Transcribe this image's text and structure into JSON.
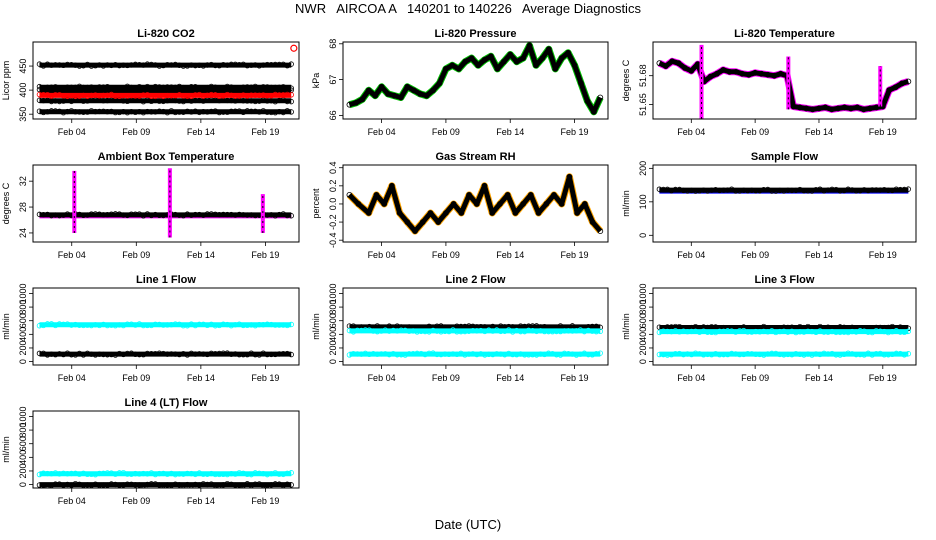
{
  "figure": {
    "title": "NWR   AIRCOA A   140201 to 140226   Average Diagnostics",
    "xlabel": "Date (UTC)"
  },
  "colors": {
    "black": "#000000",
    "red": "#ff0000",
    "green": "#00c000",
    "magenta": "#ff00ff",
    "orange": "#ffa500",
    "blue": "#0000ff",
    "cyan": "#00ffff"
  },
  "chart_data": [
    {
      "id": "co2",
      "type": "scatter",
      "title": "Li-820 CO2",
      "ylabel": "Licor ppm",
      "xlim": [
        1,
        21.6
      ],
      "ylim": [
        340,
        500
      ],
      "yticks": [
        350,
        400,
        450
      ],
      "xticks": [
        4,
        9,
        14,
        19
      ],
      "xticklabels": [
        "Feb 04",
        "Feb 09",
        "Feb 14",
        "Feb 19"
      ],
      "series": [
        {
          "name": "level-452",
          "color": "black",
          "style": "band",
          "x": [
            1.5,
            21
          ],
          "y": 452
        },
        {
          "name": "level-406",
          "color": "black",
          "style": "band",
          "x": [
            1.5,
            21
          ],
          "y": 406
        },
        {
          "name": "level-399",
          "color": "black",
          "style": "band",
          "x": [
            1.5,
            21
          ],
          "y": 399
        },
        {
          "name": "level-378",
          "color": "black",
          "style": "band",
          "x": [
            1.5,
            21
          ],
          "y": 378
        },
        {
          "name": "level-355",
          "color": "black",
          "style": "band",
          "x": [
            1.5,
            21
          ],
          "y": 355
        },
        {
          "name": "sample",
          "color": "red",
          "style": "band",
          "x": [
            1.5,
            21
          ],
          "y": 389
        },
        {
          "name": "outlier",
          "color": "red",
          "style": "points",
          "x": [
            21.2
          ],
          "y": [
            487
          ]
        }
      ]
    },
    {
      "id": "pressure",
      "type": "line",
      "title": "Li-820 Pressure",
      "ylabel": "kPa",
      "xlim": [
        1,
        21.6
      ],
      "ylim": [
        65.9,
        68.05
      ],
      "yticks": [
        66.0,
        67.0,
        68.0
      ],
      "xticks": [
        4,
        9,
        14,
        19
      ],
      "xticklabels": [
        "Feb 04",
        "Feb 09",
        "Feb 14",
        "Feb 19"
      ],
      "series": [
        {
          "name": "pressure",
          "color": "black",
          "accent": "green",
          "x": [
            1.5,
            2,
            2.5,
            3,
            3.5,
            4,
            4.5,
            5,
            5.5,
            6,
            6.5,
            7,
            7.5,
            8,
            8.5,
            9,
            9.5,
            10,
            10.5,
            11,
            11.5,
            12,
            12.5,
            13,
            13.5,
            14,
            14.5,
            15,
            15.5,
            16,
            16.5,
            17,
            17.5,
            18,
            18.5,
            19,
            19.5,
            20,
            20.5,
            21
          ],
          "y": [
            66.3,
            66.35,
            66.45,
            66.7,
            66.55,
            66.8,
            66.6,
            66.55,
            66.5,
            66.8,
            66.7,
            66.6,
            66.55,
            66.7,
            66.9,
            67.3,
            67.4,
            67.3,
            67.5,
            67.6,
            67.4,
            67.55,
            67.65,
            67.3,
            67.5,
            67.7,
            67.5,
            67.6,
            67.95,
            67.4,
            67.6,
            67.85,
            67.3,
            67.6,
            67.75,
            67.4,
            66.9,
            66.4,
            66.1,
            66.5
          ]
        }
      ]
    },
    {
      "id": "li820-temp",
      "type": "scatter",
      "title": "Li-820 Temperature",
      "ylabel": "degrees C",
      "xlim": [
        1,
        21.6
      ],
      "ylim": [
        51.635,
        51.715
      ],
      "yticks": [
        51.65,
        51.68
      ],
      "ytickfmt": [
        "51.65",
        "51.68"
      ],
      "xticks": [
        4,
        9,
        14,
        19
      ],
      "xticklabels": [
        "Feb 04",
        "Feb 09",
        "Feb 14",
        "Feb 19"
      ],
      "series": [
        {
          "name": "temperature",
          "color": "black",
          "accent": "magenta",
          "x": [
            1.5,
            2,
            2.5,
            3,
            3.5,
            4,
            4.5,
            5,
            5.5,
            6,
            6.5,
            7,
            7.5,
            8,
            8.5,
            9,
            9.5,
            10,
            10.5,
            11,
            11.5,
            12,
            12.5,
            13,
            13.5,
            14,
            14.5,
            15,
            15.5,
            16,
            16.5,
            17,
            17.5,
            18,
            18.5,
            19,
            19.5,
            20,
            20.5,
            21
          ],
          "y": [
            51.693,
            51.69,
            51.695,
            51.693,
            51.688,
            51.685,
            51.692,
            51.674,
            51.679,
            51.682,
            51.686,
            51.684,
            51.684,
            51.682,
            51.681,
            51.683,
            51.682,
            51.681,
            51.68,
            51.682,
            51.68,
            51.648,
            51.647,
            51.646,
            51.645,
            51.646,
            51.647,
            51.645,
            51.646,
            51.647,
            51.646,
            51.647,
            51.645,
            51.646,
            51.647,
            51.648,
            51.665,
            51.668,
            51.672,
            51.674
          ]
        },
        {
          "name": "spikes",
          "color": "magenta",
          "style": "vlines",
          "x": [
            4.8,
            11.6,
            18.8
          ],
          "y": [
            [
              51.635,
              51.712
            ],
            [
              51.645,
              51.7
            ],
            [
              51.648,
              51.69
            ]
          ]
        }
      ]
    },
    {
      "id": "box-temp",
      "type": "scatter",
      "title": "Ambient Box Temperature",
      "ylabel": "degrees C",
      "xlim": [
        1,
        21.6
      ],
      "ylim": [
        22.6,
        34.5
      ],
      "yticks": [
        24,
        28,
        32
      ],
      "xticks": [
        4,
        9,
        14,
        19
      ],
      "xticklabels": [
        "Feb 04",
        "Feb 09",
        "Feb 14",
        "Feb 19"
      ],
      "series": [
        {
          "name": "temperature",
          "color": "black",
          "accent": "magenta",
          "style": "band",
          "x": [
            1.5,
            21
          ],
          "y": 26.8
        },
        {
          "name": "spikes",
          "color": "magenta",
          "style": "vlines",
          "x": [
            4.2,
            11.6,
            18.8
          ],
          "y": [
            [
              24.0,
              33.6
            ],
            [
              23.3,
              34.0
            ],
            [
              24.0,
              30.0
            ]
          ]
        }
      ]
    },
    {
      "id": "rh",
      "type": "scatter",
      "title": "Gas Stream RH",
      "ylabel": "percent",
      "xlim": [
        1,
        21.6
      ],
      "ylim": [
        -0.42,
        0.43
      ],
      "yticks": [
        -0.4,
        -0.2,
        0.0,
        0.2,
        0.4
      ],
      "ytickfmt": [
        "-0.4",
        "-0.2",
        "0.0",
        "0.2",
        "0.4"
      ],
      "xticks": [
        4,
        9,
        14,
        19
      ],
      "xticklabels": [
        "Feb 04",
        "Feb 09",
        "Feb 14",
        "Feb 19"
      ],
      "series": [
        {
          "name": "rh",
          "color": "black",
          "accent": "orange",
          "x": [
            1.5,
            2.2,
            3,
            3.6,
            4.2,
            4.8,
            5.4,
            6,
            6.6,
            7.2,
            7.8,
            8.4,
            9,
            9.6,
            10.2,
            10.8,
            11.4,
            12,
            12.6,
            13.2,
            13.8,
            14.4,
            15,
            15.6,
            16.2,
            16.8,
            17.4,
            18,
            18.6,
            19.2,
            19.8,
            20.4,
            21
          ],
          "y": [
            0.1,
            0.0,
            -0.1,
            0.1,
            0.0,
            0.2,
            -0.1,
            -0.2,
            -0.3,
            -0.2,
            -0.1,
            -0.2,
            -0.1,
            0.0,
            -0.1,
            0.1,
            0.0,
            0.2,
            -0.1,
            0.0,
            0.1,
            -0.1,
            0.0,
            0.1,
            -0.1,
            0.0,
            0.1,
            0.0,
            0.3,
            -0.1,
            0.0,
            -0.2,
            -0.3
          ]
        }
      ]
    },
    {
      "id": "sample-flow",
      "type": "scatter",
      "title": "Sample Flow",
      "ylabel": "ml/min",
      "xlim": [
        1,
        21.6
      ],
      "ylim": [
        -20,
        210
      ],
      "yticks": [
        0,
        100,
        200
      ],
      "xticks": [
        4,
        9,
        14,
        19
      ],
      "xticklabels": [
        "Feb 04",
        "Feb 09",
        "Feb 14",
        "Feb 19"
      ],
      "series": [
        {
          "name": "flow",
          "color": "black",
          "accent": "blue",
          "style": "band",
          "x": [
            1.5,
            21
          ],
          "y": 135
        }
      ]
    },
    {
      "id": "line1",
      "type": "scatter",
      "title": "Line 1 Flow",
      "ylabel": "ml/min",
      "xlim": [
        1,
        21.6
      ],
      "ylim": [
        -50,
        1080
      ],
      "yticks": [
        0,
        200,
        400,
        600,
        800,
        1000
      ],
      "xticks": [
        4,
        9,
        14,
        19
      ],
      "xticklabels": [
        "Feb 04",
        "Feb 09",
        "Feb 14",
        "Feb 19"
      ],
      "series": [
        {
          "name": "high",
          "color": "cyan",
          "style": "band",
          "x": [
            1.5,
            21
          ],
          "y": 540
        },
        {
          "name": "low",
          "color": "black",
          "style": "band",
          "x": [
            1.5,
            21
          ],
          "y": 110
        }
      ]
    },
    {
      "id": "line2",
      "type": "scatter",
      "title": "Line 2 Flow",
      "ylabel": "ml/min",
      "xlim": [
        1,
        21.6
      ],
      "ylim": [
        -50,
        1080
      ],
      "yticks": [
        0,
        200,
        400,
        600,
        800,
        1000
      ],
      "xticks": [
        4,
        9,
        14,
        19
      ],
      "xticklabels": [
        "Feb 04",
        "Feb 09",
        "Feb 14",
        "Feb 19"
      ],
      "series": [
        {
          "name": "high",
          "color": "black",
          "style": "band",
          "x": [
            1.5,
            21
          ],
          "y": 510
        },
        {
          "name": "mid",
          "color": "cyan",
          "style": "band",
          "x": [
            1.5,
            21
          ],
          "y": 450
        },
        {
          "name": "low",
          "color": "cyan",
          "style": "band",
          "x": [
            1.5,
            21
          ],
          "y": 110
        }
      ]
    },
    {
      "id": "line3",
      "type": "scatter",
      "title": "Line 3 Flow",
      "ylabel": "ml/min",
      "xlim": [
        1,
        21.6
      ],
      "ylim": [
        -50,
        1080
      ],
      "yticks": [
        0,
        200,
        400,
        600,
        800,
        1000
      ],
      "xticks": [
        4,
        9,
        14,
        19
      ],
      "xticklabels": [
        "Feb 04",
        "Feb 09",
        "Feb 14",
        "Feb 19"
      ],
      "series": [
        {
          "name": "high",
          "color": "black",
          "style": "band",
          "x": [
            1.5,
            21
          ],
          "y": 500
        },
        {
          "name": "mid",
          "color": "cyan",
          "style": "band",
          "x": [
            1.5,
            21
          ],
          "y": 440
        },
        {
          "name": "low",
          "color": "cyan",
          "style": "band",
          "x": [
            1.5,
            21
          ],
          "y": 110
        }
      ]
    },
    {
      "id": "line4",
      "type": "scatter",
      "title": "Line 4 (LT) Flow",
      "ylabel": "ml/min",
      "xlim": [
        1,
        21.6
      ],
      "ylim": [
        -50,
        1080
      ],
      "yticks": [
        0,
        200,
        400,
        600,
        800,
        1000
      ],
      "xticks": [
        4,
        9,
        14,
        19
      ],
      "xticklabels": [
        "Feb 04",
        "Feb 09",
        "Feb 14",
        "Feb 19"
      ],
      "series": [
        {
          "name": "high",
          "color": "cyan",
          "style": "band",
          "x": [
            1.5,
            21
          ],
          "y": 160
        },
        {
          "name": "low",
          "color": "black",
          "style": "band",
          "x": [
            1.5,
            21
          ],
          "y": 0
        }
      ]
    }
  ]
}
